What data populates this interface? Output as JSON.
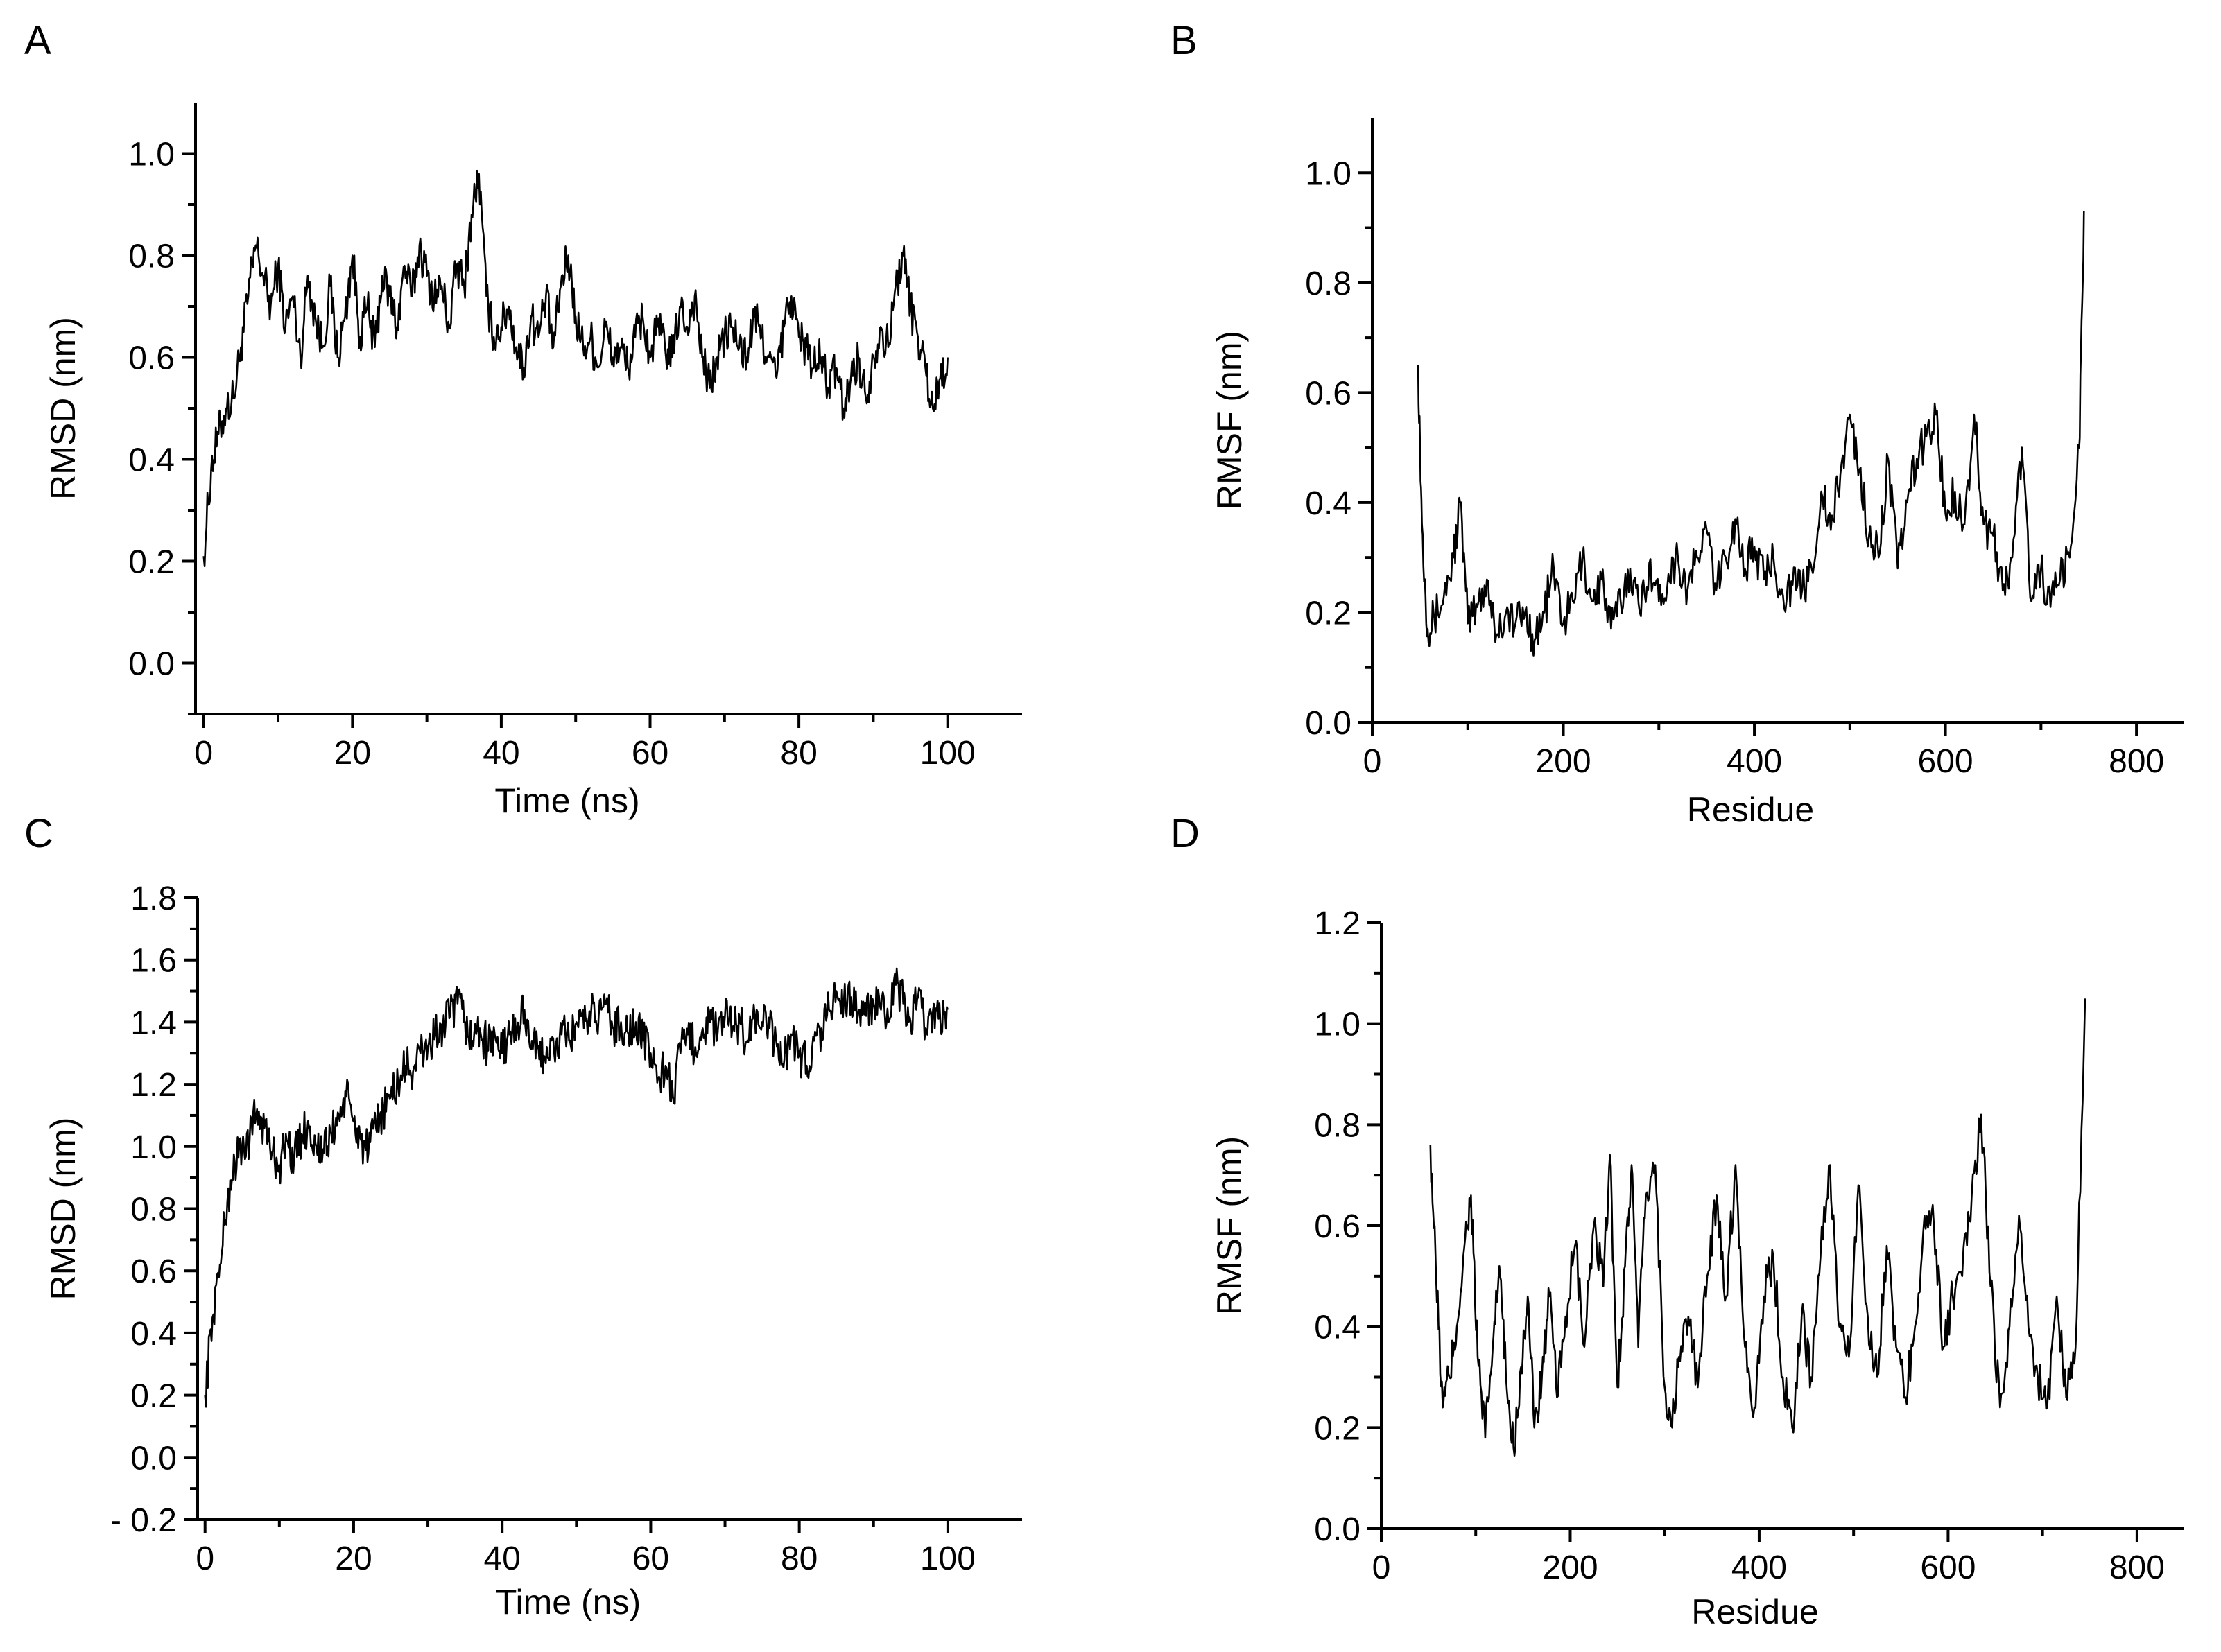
{
  "chart_data": [
    {
      "type": "line",
      "panel": "A",
      "title": "",
      "xlabel": "Time (ns)",
      "ylabel": "RMSD (nm)",
      "xlim": [
        -1,
        110
      ],
      "ylim": [
        -0.1,
        1.1
      ],
      "xticks": [
        0,
        20,
        40,
        60,
        80,
        100
      ],
      "xtick_labels": [
        "0",
        "20",
        "40",
        "60",
        "80",
        "100"
      ],
      "yticks": [
        0.0,
        0.2,
        0.4,
        0.6,
        0.8,
        1.0
      ],
      "ytick_labels": [
        "0.0",
        "0.2",
        "0.4",
        "0.6",
        "0.8",
        "1.0"
      ],
      "grid": false,
      "series": [
        {
          "name": "RMSD",
          "x": [
            0,
            1,
            2,
            3,
            4,
            5,
            6,
            7,
            8,
            9,
            10,
            11,
            12,
            13,
            14,
            15,
            16,
            17,
            18,
            19,
            20,
            21,
            22,
            23,
            24,
            25,
            26,
            27,
            28,
            29,
            30,
            31,
            32,
            33,
            34,
            35,
            36,
            37,
            38,
            39,
            40,
            41,
            42,
            43,
            44,
            45,
            46,
            47,
            48,
            49,
            50,
            51,
            52,
            53,
            54,
            55,
            56,
            57,
            58,
            59,
            60,
            61,
            62,
            63,
            64,
            65,
            66,
            67,
            68,
            69,
            70,
            71,
            72,
            73,
            74,
            75,
            76,
            77,
            78,
            79,
            80,
            81,
            82,
            83,
            84,
            85,
            86,
            87,
            88,
            89,
            90,
            91,
            92,
            93,
            94,
            95,
            96,
            97,
            98,
            99,
            100
          ],
          "y": [
            0.21,
            0.38,
            0.45,
            0.5,
            0.52,
            0.62,
            0.72,
            0.82,
            0.76,
            0.7,
            0.78,
            0.66,
            0.72,
            0.6,
            0.76,
            0.68,
            0.62,
            0.74,
            0.6,
            0.68,
            0.8,
            0.64,
            0.7,
            0.62,
            0.76,
            0.72,
            0.66,
            0.78,
            0.72,
            0.82,
            0.76,
            0.72,
            0.74,
            0.66,
            0.78,
            0.74,
            0.88,
            0.96,
            0.72,
            0.64,
            0.66,
            0.7,
            0.62,
            0.58,
            0.68,
            0.64,
            0.72,
            0.62,
            0.74,
            0.8,
            0.68,
            0.62,
            0.64,
            0.58,
            0.66,
            0.6,
            0.62,
            0.58,
            0.64,
            0.68,
            0.6,
            0.66,
            0.62,
            0.6,
            0.7,
            0.66,
            0.72,
            0.6,
            0.54,
            0.6,
            0.64,
            0.66,
            0.62,
            0.6,
            0.68,
            0.64,
            0.6,
            0.56,
            0.66,
            0.72,
            0.64,
            0.62,
            0.58,
            0.6,
            0.54,
            0.58,
            0.5,
            0.56,
            0.6,
            0.52,
            0.6,
            0.66,
            0.62,
            0.74,
            0.8,
            0.7,
            0.64,
            0.58,
            0.5,
            0.56,
            0.6
          ]
        }
      ]
    },
    {
      "type": "line",
      "panel": "B",
      "title": "",
      "xlabel": "Residue",
      "ylabel": "RMSF (nm)",
      "xlim": [
        0,
        850
      ],
      "ylim": [
        0,
        1.1
      ],
      "xticks": [
        0,
        200,
        400,
        600,
        800
      ],
      "xtick_labels": [
        "0",
        "200",
        "400",
        "600",
        "800"
      ],
      "yticks": [
        0.0,
        0.2,
        0.4,
        0.6,
        0.8,
        1.0
      ],
      "ytick_labels": [
        "0.0",
        "0.2",
        "0.4",
        "0.6",
        "0.8",
        "1.0"
      ],
      "grid": false,
      "series": [
        {
          "name": "RMSF",
          "x": [
            48,
            52,
            58,
            65,
            75,
            85,
            92,
            100,
            110,
            120,
            130,
            140,
            150,
            160,
            170,
            180,
            190,
            200,
            210,
            220,
            230,
            240,
            250,
            260,
            270,
            280,
            290,
            300,
            310,
            320,
            330,
            340,
            350,
            360,
            370,
            380,
            390,
            400,
            410,
            420,
            430,
            440,
            450,
            460,
            470,
            480,
            490,
            500,
            510,
            520,
            530,
            540,
            550,
            560,
            570,
            580,
            590,
            600,
            610,
            620,
            630,
            640,
            650,
            660,
            670,
            680,
            690,
            700,
            710,
            720,
            730,
            740,
            745
          ],
          "y": [
            0.65,
            0.36,
            0.17,
            0.19,
            0.23,
            0.3,
            0.4,
            0.18,
            0.21,
            0.26,
            0.16,
            0.2,
            0.18,
            0.2,
            0.15,
            0.2,
            0.28,
            0.18,
            0.22,
            0.3,
            0.22,
            0.26,
            0.17,
            0.22,
            0.28,
            0.2,
            0.29,
            0.22,
            0.27,
            0.3,
            0.24,
            0.3,
            0.35,
            0.24,
            0.3,
            0.37,
            0.28,
            0.32,
            0.26,
            0.3,
            0.23,
            0.25,
            0.24,
            0.28,
            0.42,
            0.35,
            0.45,
            0.56,
            0.46,
            0.34,
            0.3,
            0.48,
            0.28,
            0.4,
            0.48,
            0.52,
            0.56,
            0.38,
            0.42,
            0.36,
            0.56,
            0.36,
            0.34,
            0.24,
            0.3,
            0.5,
            0.22,
            0.28,
            0.21,
            0.26,
            0.3,
            0.5,
            0.93
          ]
        }
      ]
    },
    {
      "type": "line",
      "panel": "C",
      "title": "",
      "xlabel": "Time (ns)",
      "ylabel": "RMSD (nm)",
      "xlim": [
        -1,
        110
      ],
      "ylim": [
        -0.2,
        1.8
      ],
      "xticks": [
        0,
        20,
        40,
        60,
        80,
        100
      ],
      "xtick_labels": [
        "0",
        "20",
        "40",
        "60",
        "80",
        "100"
      ],
      "yticks": [
        -0.2,
        0.0,
        0.2,
        0.4,
        0.6,
        0.8,
        1.0,
        1.2,
        1.4,
        1.6,
        1.8
      ],
      "ytick_labels": [
        "- 0.2",
        "0.0",
        "0.2",
        "0.4",
        "0.6",
        "0.8",
        "1.0",
        "1.2",
        "1.4",
        "1.6",
        "1.8"
      ],
      "grid": false,
      "series": [
        {
          "name": "RMSD",
          "x": [
            0,
            1,
            2,
            3,
            4,
            5,
            6,
            7,
            8,
            9,
            10,
            11,
            12,
            13,
            14,
            15,
            16,
            17,
            18,
            19,
            20,
            21,
            22,
            23,
            24,
            25,
            26,
            27,
            28,
            29,
            30,
            31,
            32,
            33,
            34,
            35,
            36,
            37,
            38,
            39,
            40,
            41,
            42,
            43,
            44,
            45,
            46,
            47,
            48,
            49,
            50,
            51,
            52,
            53,
            54,
            55,
            56,
            57,
            58,
            59,
            60,
            61,
            62,
            63,
            64,
            65,
            66,
            67,
            68,
            69,
            70,
            71,
            72,
            73,
            74,
            75,
            76,
            77,
            78,
            79,
            80,
            81,
            82,
            83,
            84,
            85,
            86,
            87,
            88,
            89,
            90,
            91,
            92,
            93,
            94,
            95,
            96,
            97,
            98,
            99,
            100
          ],
          "y": [
            0.2,
            0.45,
            0.62,
            0.82,
            0.95,
            1.0,
            1.02,
            1.12,
            1.06,
            0.98,
            0.94,
            1.02,
            0.96,
            1.04,
            1.06,
            1.0,
            0.98,
            1.04,
            1.1,
            1.16,
            1.08,
            1.02,
            0.98,
            1.06,
            1.12,
            1.16,
            1.2,
            1.26,
            1.24,
            1.3,
            1.32,
            1.36,
            1.38,
            1.42,
            1.46,
            1.4,
            1.34,
            1.38,
            1.32,
            1.36,
            1.3,
            1.36,
            1.38,
            1.44,
            1.34,
            1.28,
            1.32,
            1.3,
            1.36,
            1.34,
            1.4,
            1.38,
            1.44,
            1.42,
            1.46,
            1.38,
            1.4,
            1.36,
            1.4,
            1.34,
            1.3,
            1.22,
            1.26,
            1.16,
            1.3,
            1.36,
            1.32,
            1.38,
            1.4,
            1.36,
            1.42,
            1.38,
            1.4,
            1.34,
            1.42,
            1.4,
            1.38,
            1.32,
            1.28,
            1.36,
            1.3,
            1.26,
            1.34,
            1.38,
            1.44,
            1.5,
            1.46,
            1.48,
            1.44,
            1.42,
            1.46,
            1.44,
            1.4,
            1.52,
            1.46,
            1.4,
            1.48,
            1.38,
            1.44,
            1.4,
            1.44
          ]
        }
      ]
    },
    {
      "type": "line",
      "panel": "D",
      "title": "",
      "xlabel": "Residue",
      "ylabel": "RMSF (nm)",
      "xlim": [
        0,
        850
      ],
      "ylim": [
        0,
        1.2
      ],
      "xticks": [
        0,
        200,
        400,
        600,
        800
      ],
      "xtick_labels": [
        "0",
        "200",
        "400",
        "600",
        "800"
      ],
      "yticks": [
        0.0,
        0.2,
        0.4,
        0.6,
        0.8,
        1.0,
        1.2
      ],
      "ytick_labels": [
        "0.0",
        "0.2",
        "0.4",
        "0.6",
        "0.8",
        "1.0",
        "1.2"
      ],
      "grid": false,
      "series": [
        {
          "name": "RMSF",
          "x": [
            52,
            58,
            65,
            72,
            80,
            88,
            95,
            102,
            110,
            118,
            125,
            132,
            140,
            148,
            155,
            162,
            170,
            178,
            186,
            195,
            205,
            215,
            225,
            235,
            242,
            250,
            258,
            265,
            272,
            280,
            290,
            300,
            308,
            315,
            325,
            335,
            345,
            355,
            365,
            375,
            385,
            395,
            405,
            415,
            425,
            435,
            445,
            455,
            465,
            475,
            485,
            495,
            505,
            515,
            525,
            535,
            545,
            555,
            565,
            575,
            585,
            595,
            605,
            615,
            625,
            635,
            645,
            655,
            665,
            675,
            685,
            695,
            705,
            715,
            725,
            735,
            745
          ],
          "y": [
            0.76,
            0.5,
            0.24,
            0.3,
            0.4,
            0.56,
            0.66,
            0.34,
            0.18,
            0.36,
            0.52,
            0.3,
            0.16,
            0.32,
            0.46,
            0.2,
            0.3,
            0.46,
            0.26,
            0.42,
            0.56,
            0.36,
            0.6,
            0.48,
            0.74,
            0.28,
            0.52,
            0.72,
            0.36,
            0.66,
            0.72,
            0.28,
            0.2,
            0.34,
            0.42,
            0.28,
            0.5,
            0.66,
            0.46,
            0.72,
            0.36,
            0.24,
            0.46,
            0.54,
            0.3,
            0.2,
            0.42,
            0.3,
            0.54,
            0.72,
            0.4,
            0.34,
            0.68,
            0.42,
            0.3,
            0.56,
            0.36,
            0.26,
            0.4,
            0.62,
            0.6,
            0.36,
            0.46,
            0.5,
            0.66,
            0.82,
            0.48,
            0.24,
            0.4,
            0.62,
            0.4,
            0.3,
            0.24,
            0.46,
            0.26,
            0.36,
            1.05
          ]
        }
      ]
    }
  ]
}
